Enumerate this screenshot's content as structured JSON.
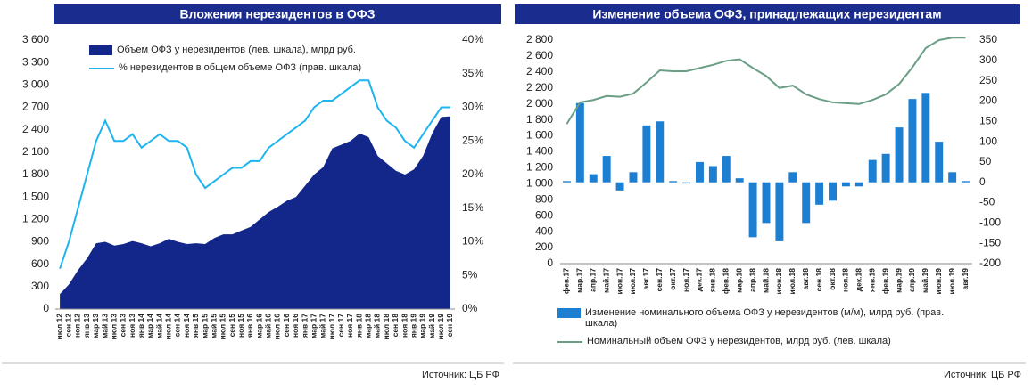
{
  "chart_data": [
    {
      "type": "combo",
      "title": "Вложения нерезидентов в ОФЗ",
      "source": "Источник: ЦБ РФ",
      "legend": "inside-top-left",
      "categories": [
        "июл 12",
        "сен 12",
        "ноя 12",
        "янв 13",
        "мар 13",
        "май 13",
        "июл 13",
        "сен 13",
        "ноя 13",
        "янв 14",
        "мар 14",
        "май 14",
        "июл 14",
        "сен 14",
        "ноя 14",
        "янв 15",
        "мар 15",
        "май 15",
        "июл 15",
        "сен 15",
        "ноя 15",
        "янв 16",
        "мар 16",
        "май 16",
        "июл 16",
        "сен 16",
        "ноя 16",
        "янв 17",
        "мар 17",
        "май 17",
        "июл 17",
        "сен 17",
        "ноя 17",
        "янв 18",
        "мар 18",
        "май 18",
        "июл 18",
        "сен 18",
        "ноя 18",
        "янв 19",
        "мар 19",
        "май 19",
        "июл 19",
        "сен 19"
      ],
      "ylim": [
        0,
        3600
      ],
      "yticks": [
        0,
        300,
        600,
        900,
        {
          "value": 1200,
          "label": "1 200"
        },
        {
          "value": 1500,
          "label": "1 500"
        },
        {
          "value": 1800,
          "label": "1 800"
        },
        {
          "value": 2100,
          "label": "2 100"
        },
        {
          "value": 2400,
          "label": "2 400"
        },
        {
          "value": 2700,
          "label": "2 700"
        },
        {
          "value": 3000,
          "label": "3 000"
        },
        {
          "value": 3300,
          "label": "3 300"
        },
        {
          "value": 3600,
          "label": "3 600"
        }
      ],
      "y2lim": [
        0,
        40
      ],
      "y2ticks": [
        {
          "value": 0,
          "label": "0%"
        },
        {
          "value": 5,
          "label": "5%"
        },
        {
          "value": 10,
          "label": "10%"
        },
        {
          "value": 15,
          "label": "15%"
        },
        {
          "value": 20,
          "label": "20%"
        },
        {
          "value": 25,
          "label": "25%"
        },
        {
          "value": 30,
          "label": "30%"
        },
        {
          "value": 35,
          "label": "35%"
        },
        {
          "value": 40,
          "label": "40%"
        }
      ],
      "series": [
        {
          "name": "Объем ОФЗ у нерезидентов (лев. шкала), млрд руб.",
          "kind": "area",
          "color": "#13268a",
          "values": [
            200,
            330,
            520,
            680,
            880,
            900,
            850,
            870,
            910,
            880,
            840,
            880,
            940,
            900,
            870,
            880,
            870,
            950,
            1000,
            1000,
            1050,
            1100,
            1200,
            1300,
            1370,
            1450,
            1500,
            1650,
            1800,
            1900,
            2150,
            2200,
            2250,
            2350,
            2300,
            2050,
            1950,
            1850,
            1800,
            1870,
            2050,
            2350,
            2570,
            2580
          ]
        },
        {
          "name": "% нерезидентов в общем объеме ОФЗ (прав. шкала)",
          "kind": "line",
          "axis": "y2",
          "color": "#1eb4f0",
          "values": [
            6,
            10,
            15,
            20,
            25,
            28,
            25,
            25,
            26,
            24,
            25,
            26,
            25,
            25,
            24,
            20,
            18,
            19,
            20,
            21,
            21,
            22,
            22,
            24,
            25,
            26,
            27,
            28,
            30,
            31,
            31,
            32,
            33,
            34,
            34,
            30,
            28,
            27,
            25,
            24,
            26,
            28,
            30,
            30
          ]
        }
      ]
    },
    {
      "type": "combo",
      "title": "Изменение объема ОФЗ, принадлежащих нерезидентам",
      "source": "Источник: ЦБ РФ",
      "legend": "bottom",
      "categories": [
        "фев.17",
        "мар.17",
        "апр.17",
        "май.17",
        "июн.17",
        "июл.17",
        "авг.17",
        "сен.17",
        "окт.17",
        "ноя.17",
        "дек.17",
        "янв.18",
        "фев.18",
        "мар.18",
        "апр.18",
        "май.18",
        "июн.18",
        "июл.18",
        "авг.18",
        "сен.18",
        "окт.18",
        "ноя.18",
        "дек.18",
        "янв.19",
        "фев.19",
        "мар.19",
        "апр.19",
        "май.19",
        "июн.19",
        "июл.19",
        "авг.19"
      ],
      "ylim": [
        0,
        2800
      ],
      "yticks": [
        0,
        200,
        400,
        600,
        800,
        {
          "value": 1000,
          "label": "1 000"
        },
        {
          "value": 1200,
          "label": "1 200"
        },
        {
          "value": 1400,
          "label": "1 400"
        },
        {
          "value": 1600,
          "label": "1 600"
        },
        {
          "value": 1800,
          "label": "1 800"
        },
        {
          "value": 2000,
          "label": "2 000"
        },
        {
          "value": 2200,
          "label": "2 200"
        },
        {
          "value": 2400,
          "label": "2 400"
        },
        {
          "value": 2600,
          "label": "2 600"
        },
        {
          "value": 2800,
          "label": "2 800"
        }
      ],
      "y2lim": [
        -200,
        350
      ],
      "y2ticks": [
        -200,
        -150,
        -100,
        -50,
        0,
        50,
        100,
        150,
        200,
        250,
        300,
        350
      ],
      "series": [
        {
          "name": "Изменение номинального объема ОФЗ у нерезидентов (м/м), млрд руб. (прав. шкала)",
          "kind": "bar",
          "axis": "y2",
          "color": "#1c7fd2",
          "values": [
            3,
            195,
            20,
            65,
            -20,
            25,
            140,
            150,
            3,
            -3,
            50,
            40,
            65,
            10,
            -135,
            -100,
            -145,
            25,
            -100,
            -55,
            -45,
            -10,
            -10,
            55,
            70,
            135,
            205,
            220,
            100,
            25,
            3
          ]
        },
        {
          "name": "Номинальный объем ОФЗ у нерезидентов, млрд руб. (лев. шкала)",
          "kind": "line",
          "color": "#6b9f85",
          "values": [
            1750,
            2020,
            2050,
            2100,
            2090,
            2130,
            2270,
            2420,
            2410,
            2410,
            2450,
            2490,
            2540,
            2560,
            2450,
            2350,
            2200,
            2230,
            2120,
            2060,
            2020,
            2010,
            2000,
            2050,
            2120,
            2250,
            2460,
            2700,
            2800,
            2830,
            2830
          ]
        }
      ]
    }
  ]
}
